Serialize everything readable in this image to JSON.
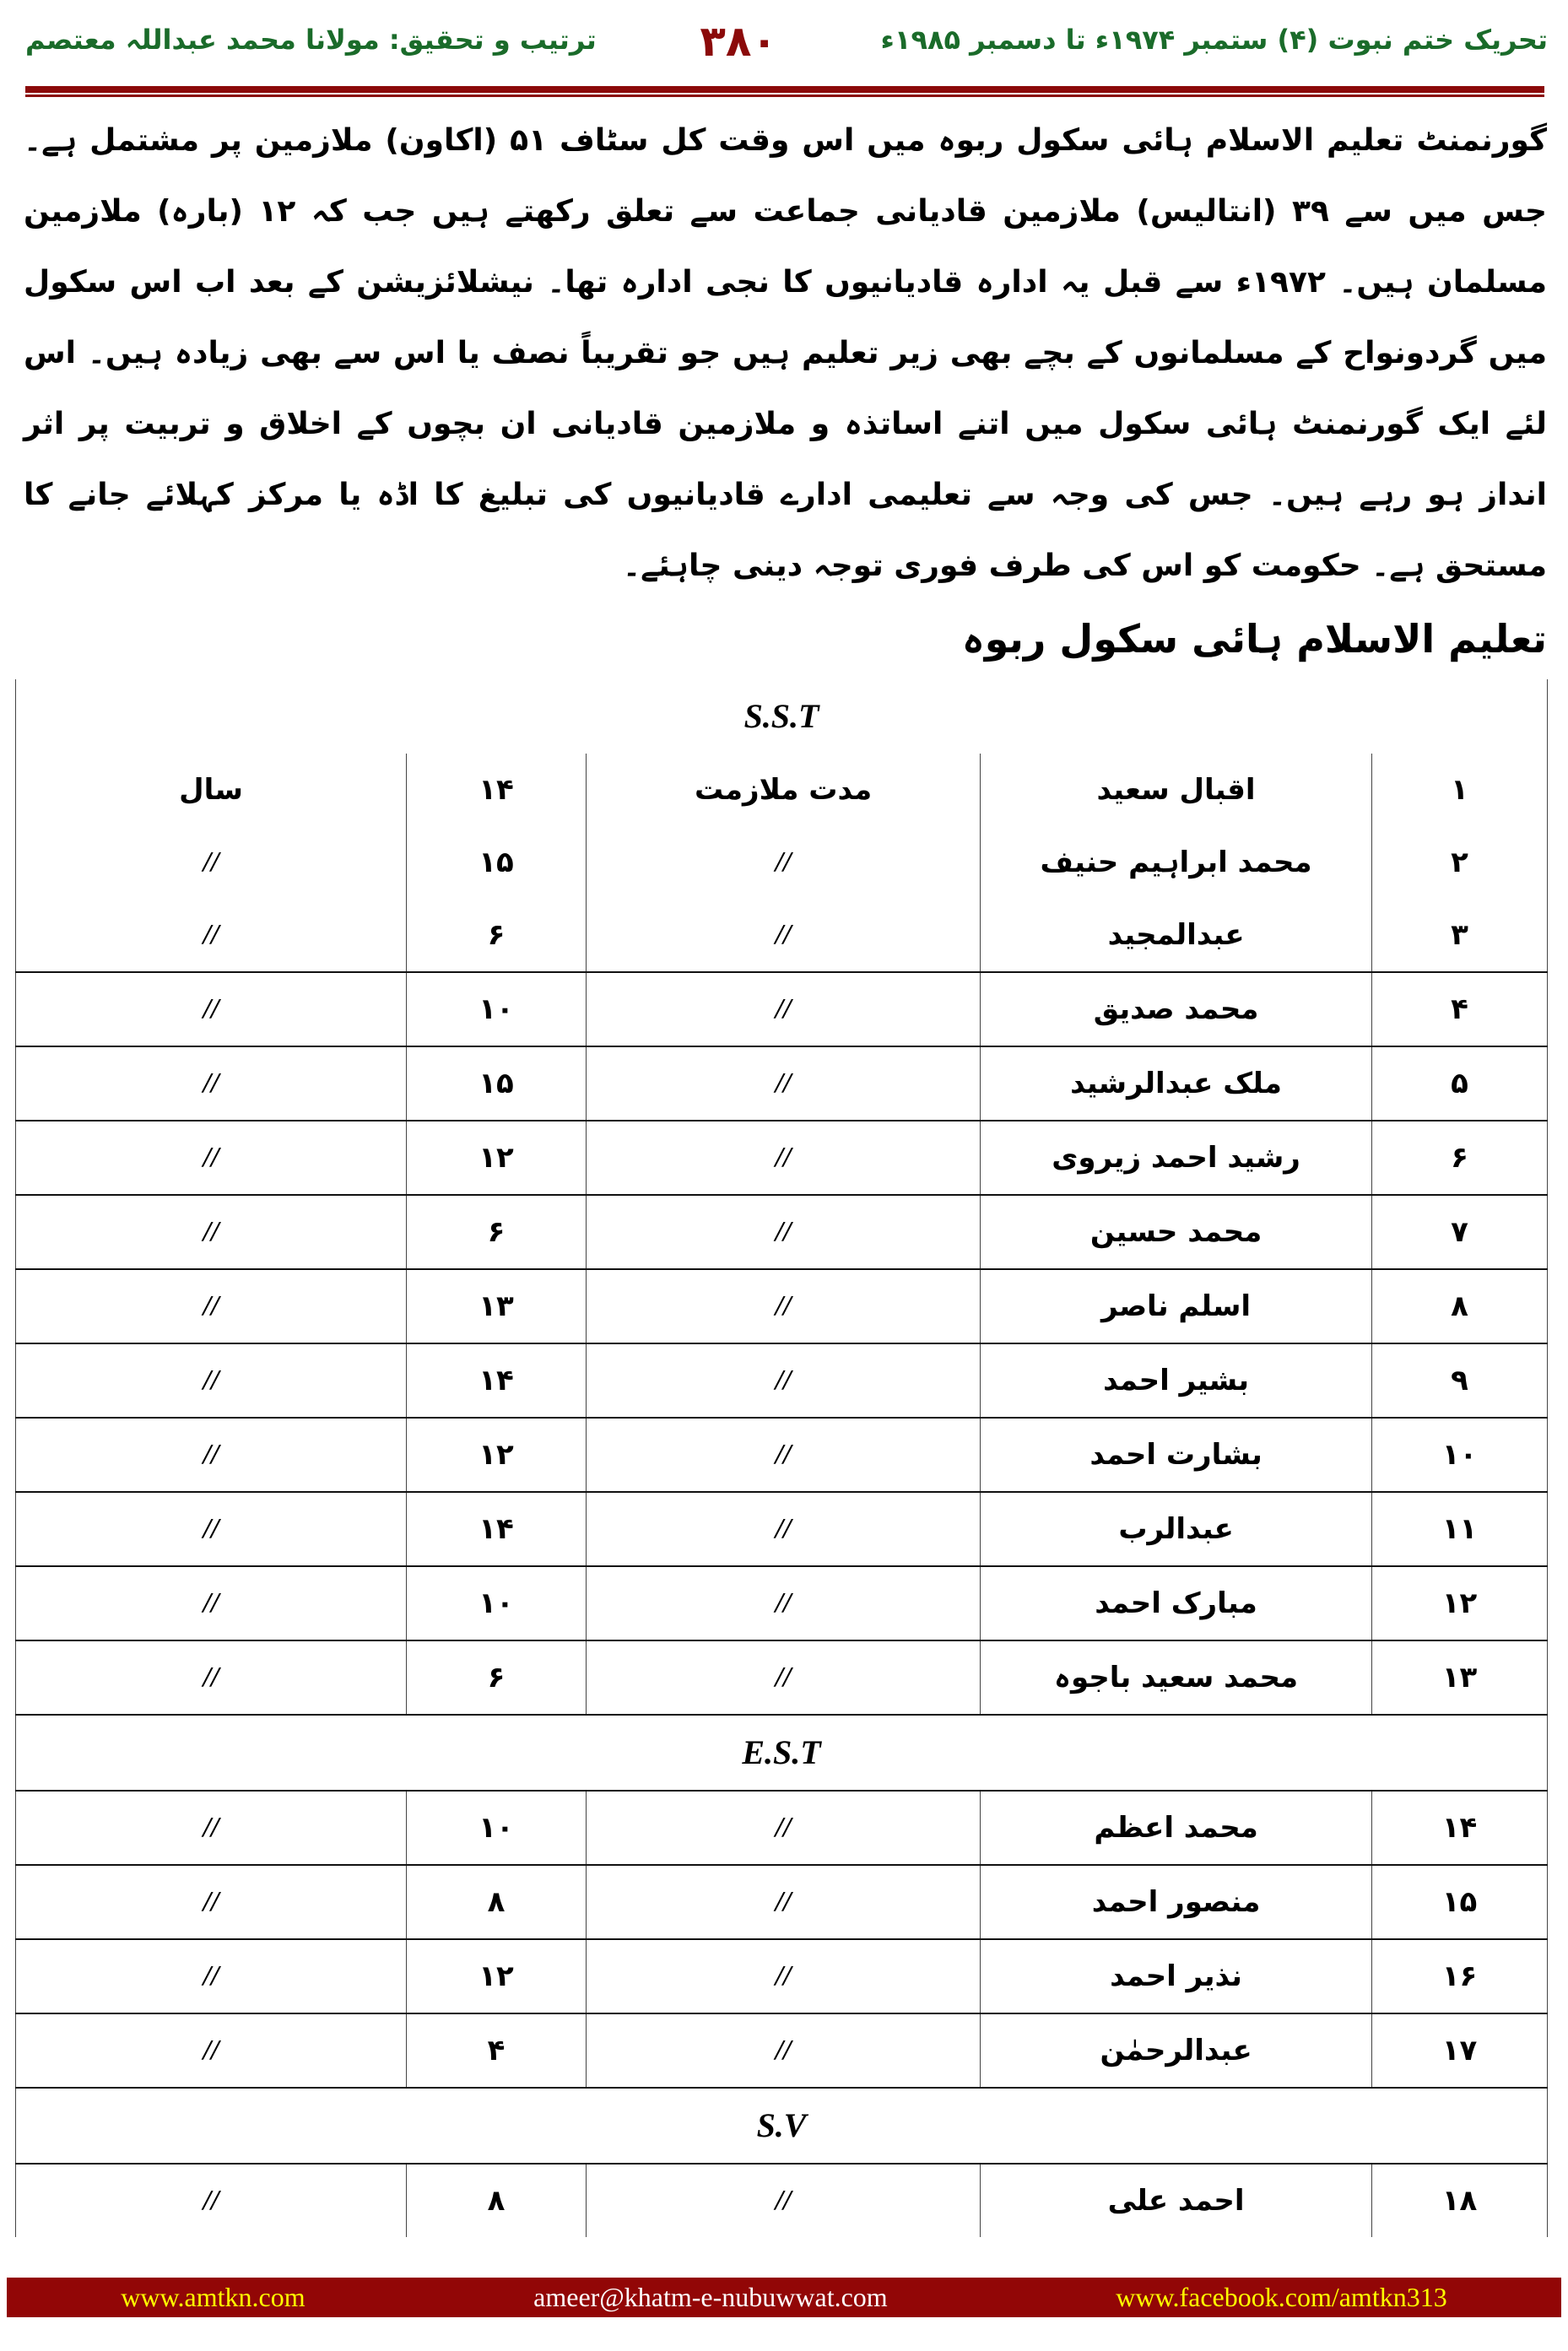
{
  "header": {
    "right": "تحریک ختم نبوت (۴) ستمبر ۱۹۷۴ء تا دسمبر ۱۹۸۵ء",
    "page_number": "۳۸۰",
    "left": "ترتیب و تحقیق: مولانا محمد عبداللہ معتصم"
  },
  "paragraph": "گورنمنٹ تعلیم الاسلام ہائی سکول ربوہ میں اس وقت کل سٹاف ۵۱ (اکاون) ملازمین پر مشتمل ہے۔ جس میں سے ۳۹ (انتالیس) ملازمین قادیانی جماعت سے تعلق رکھتے ہیں جب کہ ۱۲ (بارہ) ملازمین مسلمان ہیں۔ ۱۹۷۲ء سے قبل یہ ادارہ قادیانیوں کا نجی ادارہ تھا۔ نیشلائزیشن کے بعد اب اس سکول میں گردونواح کے مسلمانوں کے بچے بھی زیر تعلیم ہیں جو تقریباً نصف یا اس سے بھی زیادہ ہیں۔ اس لئے ایک گورنمنٹ ہائی سکول میں اتنے اساتذہ و ملازمین قادیانی ان بچوں کے اخلاق و تربیت پر اثر انداز ہو رہے ہیں۔ جس کی وجہ سے تعلیمی ادارے قادیانیوں کی تبلیغ کا اڈہ یا مرکز کہلائے جانے کا مستحق ہے۔ حکومت کو اس کی طرف فوری توجہ دینی چاہئے۔",
  "table_title": "تعلیم الاسلام ہائی سکول ربوہ",
  "sections": [
    {
      "label": "S.S.T",
      "rows": [
        [
          "۱",
          "اقبال سعید",
          "مدت ملازمت",
          "۱۴",
          "سال"
        ],
        [
          "۲",
          "محمد ابراہیم حنیف",
          "//",
          "۱۵",
          "//"
        ],
        [
          "۳",
          "عبدالمجید",
          "//",
          "۶",
          "//"
        ],
        [
          "۴",
          "محمد صدیق",
          "//",
          "۱۰",
          "//"
        ],
        [
          "۵",
          "ملک عبدالرشید",
          "//",
          "۱۵",
          "//"
        ],
        [
          "۶",
          "رشید احمد زیروی",
          "//",
          "۱۲",
          "//"
        ],
        [
          "۷",
          "محمد حسین",
          "//",
          "۶",
          "//"
        ],
        [
          "۸",
          "اسلم ناصر",
          "//",
          "۱۳",
          "//"
        ],
        [
          "۹",
          "بشیر احمد",
          "//",
          "۱۴",
          "//"
        ],
        [
          "۱۰",
          "بشارت احمد",
          "//",
          "۱۲",
          "//"
        ],
        [
          "۱۱",
          "عبدالرب",
          "//",
          "۱۴",
          "//"
        ],
        [
          "۱۲",
          "مبارک احمد",
          "//",
          "۱۰",
          "//"
        ],
        [
          "۱۳",
          "محمد سعید باجوہ",
          "//",
          "۶",
          "//"
        ]
      ]
    },
    {
      "label": "E.S.T",
      "rows": [
        [
          "۱۴",
          "محمد اعظم",
          "//",
          "۱۰",
          "//"
        ],
        [
          "۱۵",
          "منصور احمد",
          "//",
          "۸",
          "//"
        ],
        [
          "۱۶",
          "نذیر احمد",
          "//",
          "۱۲",
          "//"
        ],
        [
          "۱۷",
          "عبدالرحمٰن",
          "//",
          "۴",
          "//"
        ]
      ]
    },
    {
      "label": "S.V",
      "rows": [
        [
          "۱۸",
          "احمد علی",
          "//",
          "۸",
          "//"
        ]
      ]
    }
  ],
  "footer": {
    "website": "www.amtkn.com",
    "email": "ameer@khatm-e-nubuwwat.com",
    "facebook": "www.facebook.com/amtkn313"
  },
  "colors": {
    "accent": "#8b0a0a",
    "header_green": "#1a6b2a",
    "footer_bg": "#920606",
    "footer_yellow": "#ffff00",
    "footer_white": "#ffffff"
  }
}
